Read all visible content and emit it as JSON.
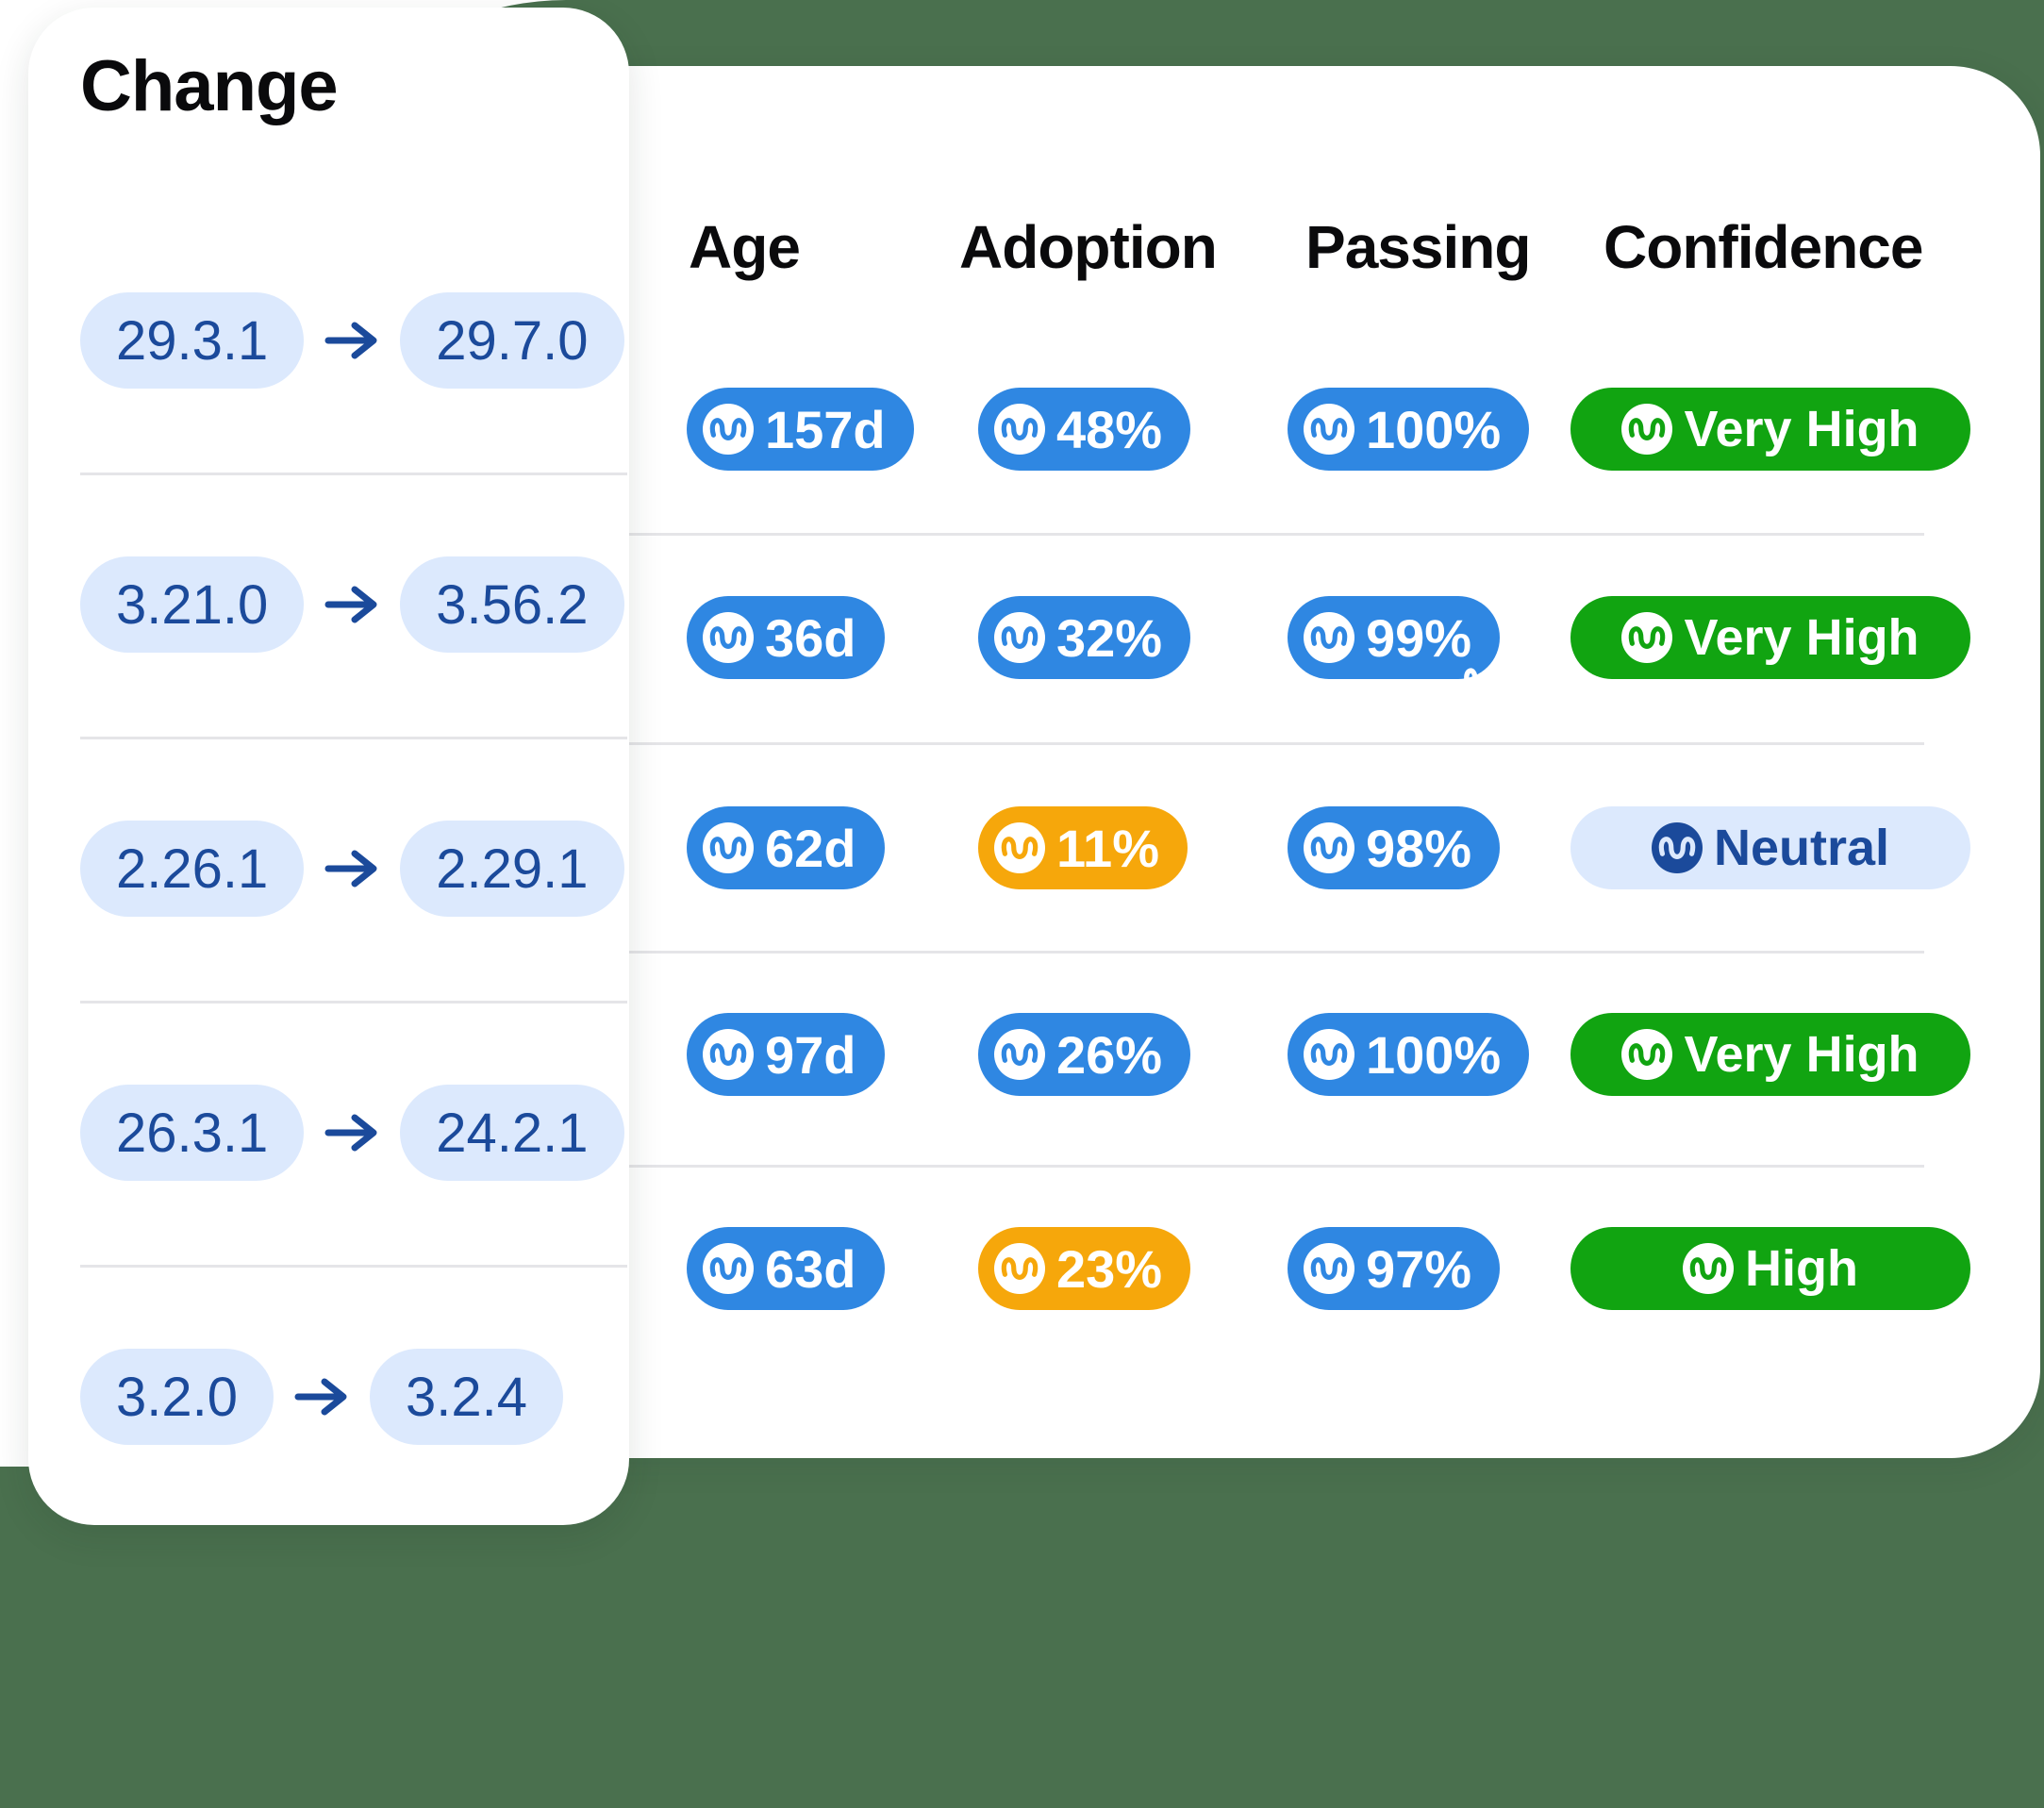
{
  "left_panel": {
    "title": "Change",
    "rows": [
      {
        "from": "29.3.1",
        "to": "29.7.0"
      },
      {
        "from": "3.21.0",
        "to": "3.56.2"
      },
      {
        "from": "2.26.1",
        "to": "2.29.1"
      },
      {
        "from": "26.3.1",
        "to": "24.2.1"
      },
      {
        "from": "3.2.0",
        "to": "3.2.4"
      }
    ]
  },
  "table": {
    "headers": [
      "Age",
      "Adoption",
      "Passing",
      "Confidence"
    ],
    "rows": [
      {
        "age": "157d",
        "adoption": "48%",
        "adoption_variant": "blue",
        "passing": "100%",
        "passing_cursor": false,
        "confidence": "Very High",
        "confidence_variant": "green"
      },
      {
        "age": "36d",
        "adoption": "32%",
        "adoption_variant": "blue",
        "passing": "99%",
        "passing_cursor": true,
        "confidence": "Very High",
        "confidence_variant": "green"
      },
      {
        "age": "62d",
        "adoption": "11%",
        "adoption_variant": "orange",
        "passing": "98%",
        "passing_cursor": false,
        "confidence": "Neutral",
        "confidence_variant": "neutral"
      },
      {
        "age": "97d",
        "adoption": "26%",
        "adoption_variant": "blue",
        "passing": "100%",
        "passing_cursor": false,
        "confidence": "Very High",
        "confidence_variant": "green"
      },
      {
        "age": "63d",
        "adoption": "23%",
        "adoption_variant": "orange",
        "passing": "97%",
        "passing_cursor": false,
        "confidence": "High",
        "confidence_variant": "green"
      }
    ]
  },
  "icons": {
    "badge_icon": "wave-icon",
    "arrow_icon": "arrow-right-icon"
  },
  "colors": {
    "badge_blue": "#2F87E2",
    "badge_orange": "#F6A70B",
    "badge_green": "#11A411",
    "pill_bg": "#DCE9FD",
    "navy": "#1B4A9B",
    "page_green": "#4A704E",
    "divider": "#E5E5E8"
  }
}
